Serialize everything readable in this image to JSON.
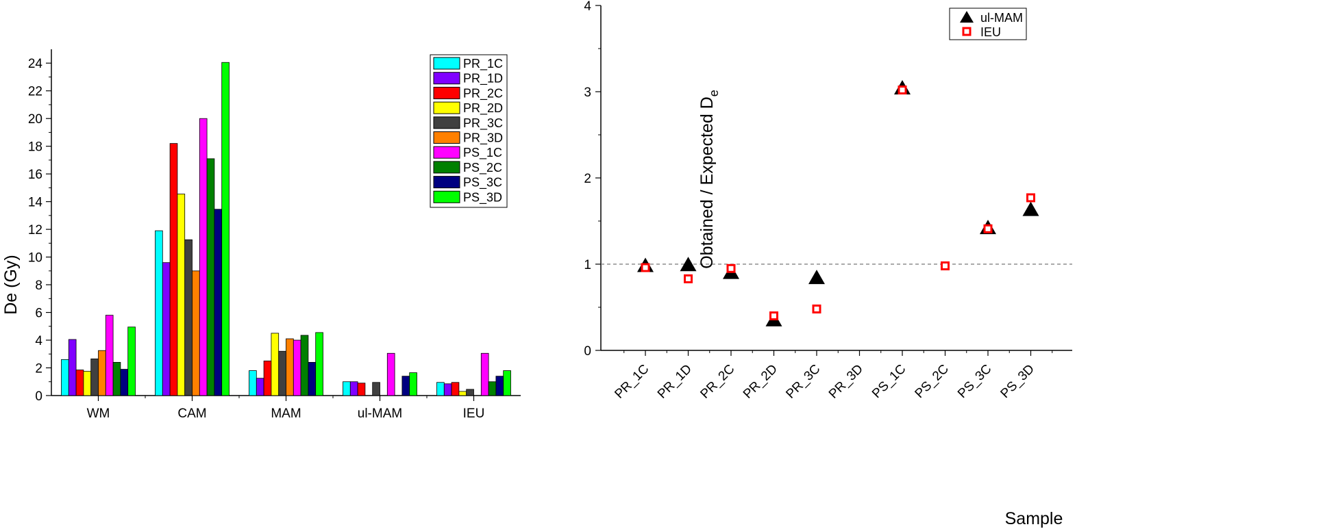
{
  "colors": {
    "PR_1C": "#00ffff",
    "PR_1D": "#8000ff",
    "PR_2C": "#ff0000",
    "PR_2D": "#ffff00",
    "PR_3C": "#404040",
    "PR_3D": "#ff8000",
    "PS_1C": "#ff00ff",
    "PS_2C": "#008000",
    "PS_3C": "#000080",
    "PS_3D": "#00ff00",
    "ul_MAM_marker": "#000000",
    "IEU_marker": "#ff0000",
    "reference_line": "#777777"
  },
  "chart_data": [
    {
      "type": "bar",
      "title": "",
      "xlabel": "",
      "ylabel": "De (Gy)",
      "ylim": [
        0,
        25
      ],
      "yticks": [
        "0",
        "2",
        "4",
        "6",
        "8",
        "10",
        "12",
        "14",
        "16",
        "18",
        "20",
        "22",
        "24"
      ],
      "categories": [
        "WM",
        "CAM",
        "MAM",
        "ul-MAM",
        "IEU"
      ],
      "legend_position": "top-right",
      "series": [
        {
          "name": "PR_1C",
          "values": [
            2.6,
            11.9,
            1.8,
            1.0,
            0.95
          ]
        },
        {
          "name": "PR_1D",
          "values": [
            4.05,
            9.6,
            1.25,
            1.0,
            0.85
          ]
        },
        {
          "name": "PR_2C",
          "values": [
            1.85,
            18.2,
            2.5,
            0.9,
            0.95
          ]
        },
        {
          "name": "PR_2D",
          "values": [
            1.75,
            14.55,
            4.5,
            null,
            0.3
          ]
        },
        {
          "name": "PR_3C",
          "values": [
            2.65,
            11.25,
            3.2,
            0.95,
            0.45
          ]
        },
        {
          "name": "PR_3D",
          "values": [
            3.25,
            9.0,
            4.1,
            null,
            null
          ]
        },
        {
          "name": "PS_1C",
          "values": [
            5.8,
            20.0,
            4.0,
            3.05,
            3.05
          ]
        },
        {
          "name": "PS_2C",
          "values": [
            2.4,
            17.1,
            4.35,
            null,
            1.0
          ]
        },
        {
          "name": "PS_3C",
          "values": [
            1.9,
            13.45,
            2.4,
            1.4,
            1.4
          ]
        },
        {
          "name": "PS_3D",
          "values": [
            4.95,
            24.05,
            4.55,
            1.65,
            1.8
          ]
        }
      ]
    },
    {
      "type": "scatter",
      "title": "",
      "xlabel": "Sample",
      "ylabel_main": "Obtained / Expected D",
      "ylabel_sub": "e",
      "ylim": [
        0,
        4
      ],
      "yticks": [
        "0",
        "1",
        "2",
        "3",
        "4"
      ],
      "categories": [
        "PR_1C",
        "PR_1D",
        "PR_2C",
        "PR_2D",
        "PR_3C",
        "PR_3D",
        "PS_1C",
        "PS_2C",
        "PS_3C",
        "PS_3D"
      ],
      "reference_line_y": 1,
      "legend_position": "top-right",
      "series": [
        {
          "name": "ul-MAM",
          "marker": "triangle",
          "values": [
            0.98,
            0.99,
            0.9,
            0.35,
            0.84,
            null,
            3.04,
            null,
            1.42,
            1.63
          ]
        },
        {
          "name": "IEU",
          "marker": "open-square",
          "values": [
            0.96,
            0.83,
            0.95,
            0.4,
            0.48,
            null,
            3.02,
            0.98,
            1.41,
            1.77
          ]
        }
      ]
    }
  ]
}
